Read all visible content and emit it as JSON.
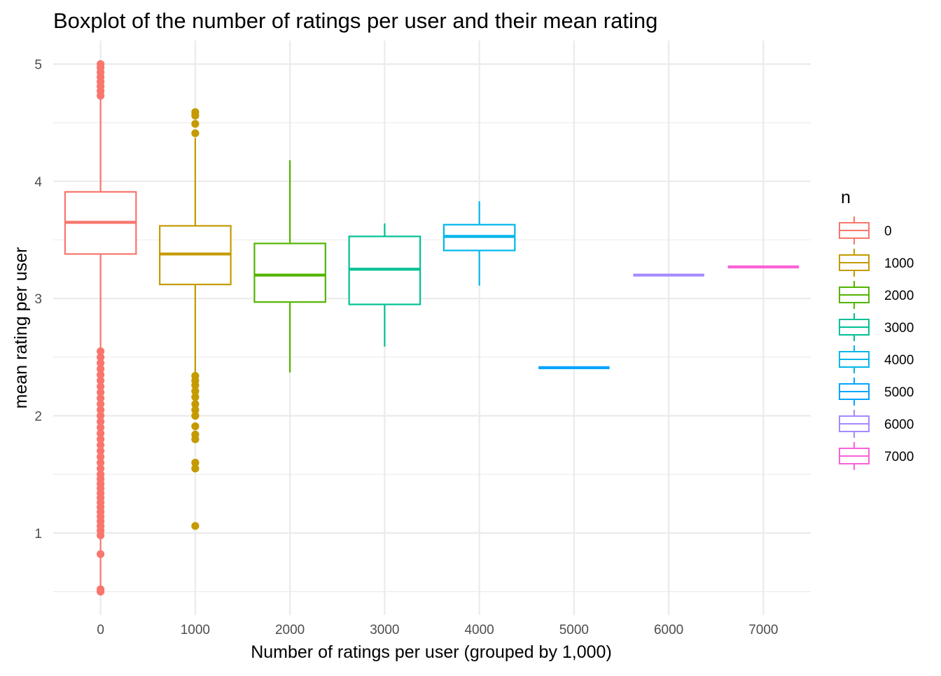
{
  "chart_data": {
    "type": "boxplot",
    "title": "Boxplot of the number of ratings per user and their mean rating",
    "xlabel": "Number of ratings per user (grouped by 1,000)",
    "ylabel": "mean rating per user",
    "xlim": [
      -500,
      7500
    ],
    "ylim": [
      0.3,
      5.2
    ],
    "x_ticks": [
      0,
      1000,
      2000,
      3000,
      4000,
      5000,
      6000,
      7000
    ],
    "x_tick_labels": [
      "0",
      "1000",
      "2000",
      "3000",
      "4000",
      "5000",
      "6000",
      "7000"
    ],
    "y_ticks": [
      1,
      2,
      3,
      4,
      5
    ],
    "y_tick_labels": [
      "1",
      "2",
      "3",
      "4",
      "5"
    ],
    "grid": true,
    "legend": {
      "title": "n",
      "position": "right"
    },
    "series": [
      {
        "name": "0",
        "x": 0,
        "color": "#F8766D",
        "lower": 0.5,
        "q1": 3.38,
        "median": 3.65,
        "q3": 3.91,
        "upper": 5.0,
        "outliers": [
          0.5,
          0.52,
          0.82,
          0.98,
          1.02,
          1.06,
          1.1,
          1.14,
          1.18,
          1.22,
          1.26,
          1.3,
          1.34,
          1.38,
          1.42,
          1.46,
          1.5,
          1.55,
          1.6,
          1.65,
          1.7,
          1.75,
          1.8,
          1.85,
          1.9,
          1.95,
          2.0,
          2.05,
          2.1,
          2.15,
          2.2,
          2.25,
          2.3,
          2.35,
          2.4,
          2.45,
          2.5,
          2.55,
          4.73,
          4.77,
          4.81,
          4.85,
          4.89,
          4.93,
          4.97,
          5.0
        ]
      },
      {
        "name": "1000",
        "x": 1000,
        "color": "#C49A00",
        "lower": 2.37,
        "q1": 3.12,
        "median": 3.38,
        "q3": 3.62,
        "upper": 4.37,
        "outliers": [
          1.06,
          1.55,
          1.6,
          1.8,
          1.84,
          1.91,
          2.0,
          2.05,
          2.1,
          2.16,
          2.21,
          2.26,
          2.3,
          2.34,
          4.41,
          4.49,
          4.56,
          4.59
        ]
      },
      {
        "name": "2000",
        "x": 2000,
        "color": "#53B400",
        "lower": 2.37,
        "q1": 2.97,
        "median": 3.2,
        "q3": 3.47,
        "upper": 4.18,
        "outliers": []
      },
      {
        "name": "3000",
        "x": 3000,
        "color": "#00C094",
        "lower": 2.59,
        "q1": 2.95,
        "median": 3.25,
        "q3": 3.53,
        "upper": 3.64,
        "outliers": []
      },
      {
        "name": "4000",
        "x": 4000,
        "color": "#00B6EB",
        "lower": 3.11,
        "q1": 3.41,
        "median": 3.53,
        "q3": 3.63,
        "upper": 3.83,
        "outliers": []
      },
      {
        "name": "5000",
        "x": 5000,
        "color": "#06A4FF",
        "lower": 2.41,
        "q1": 2.41,
        "median": 2.41,
        "q3": 2.41,
        "upper": 2.41,
        "outliers": []
      },
      {
        "name": "6000",
        "x": 6000,
        "color": "#A58AFF",
        "lower": 3.2,
        "q1": 3.2,
        "median": 3.2,
        "q3": 3.2,
        "upper": 3.2,
        "outliers": []
      },
      {
        "name": "7000",
        "x": 7000,
        "color": "#FB61D7",
        "lower": 3.27,
        "q1": 3.27,
        "median": 3.27,
        "q3": 3.27,
        "upper": 3.27,
        "outliers": []
      }
    ]
  }
}
